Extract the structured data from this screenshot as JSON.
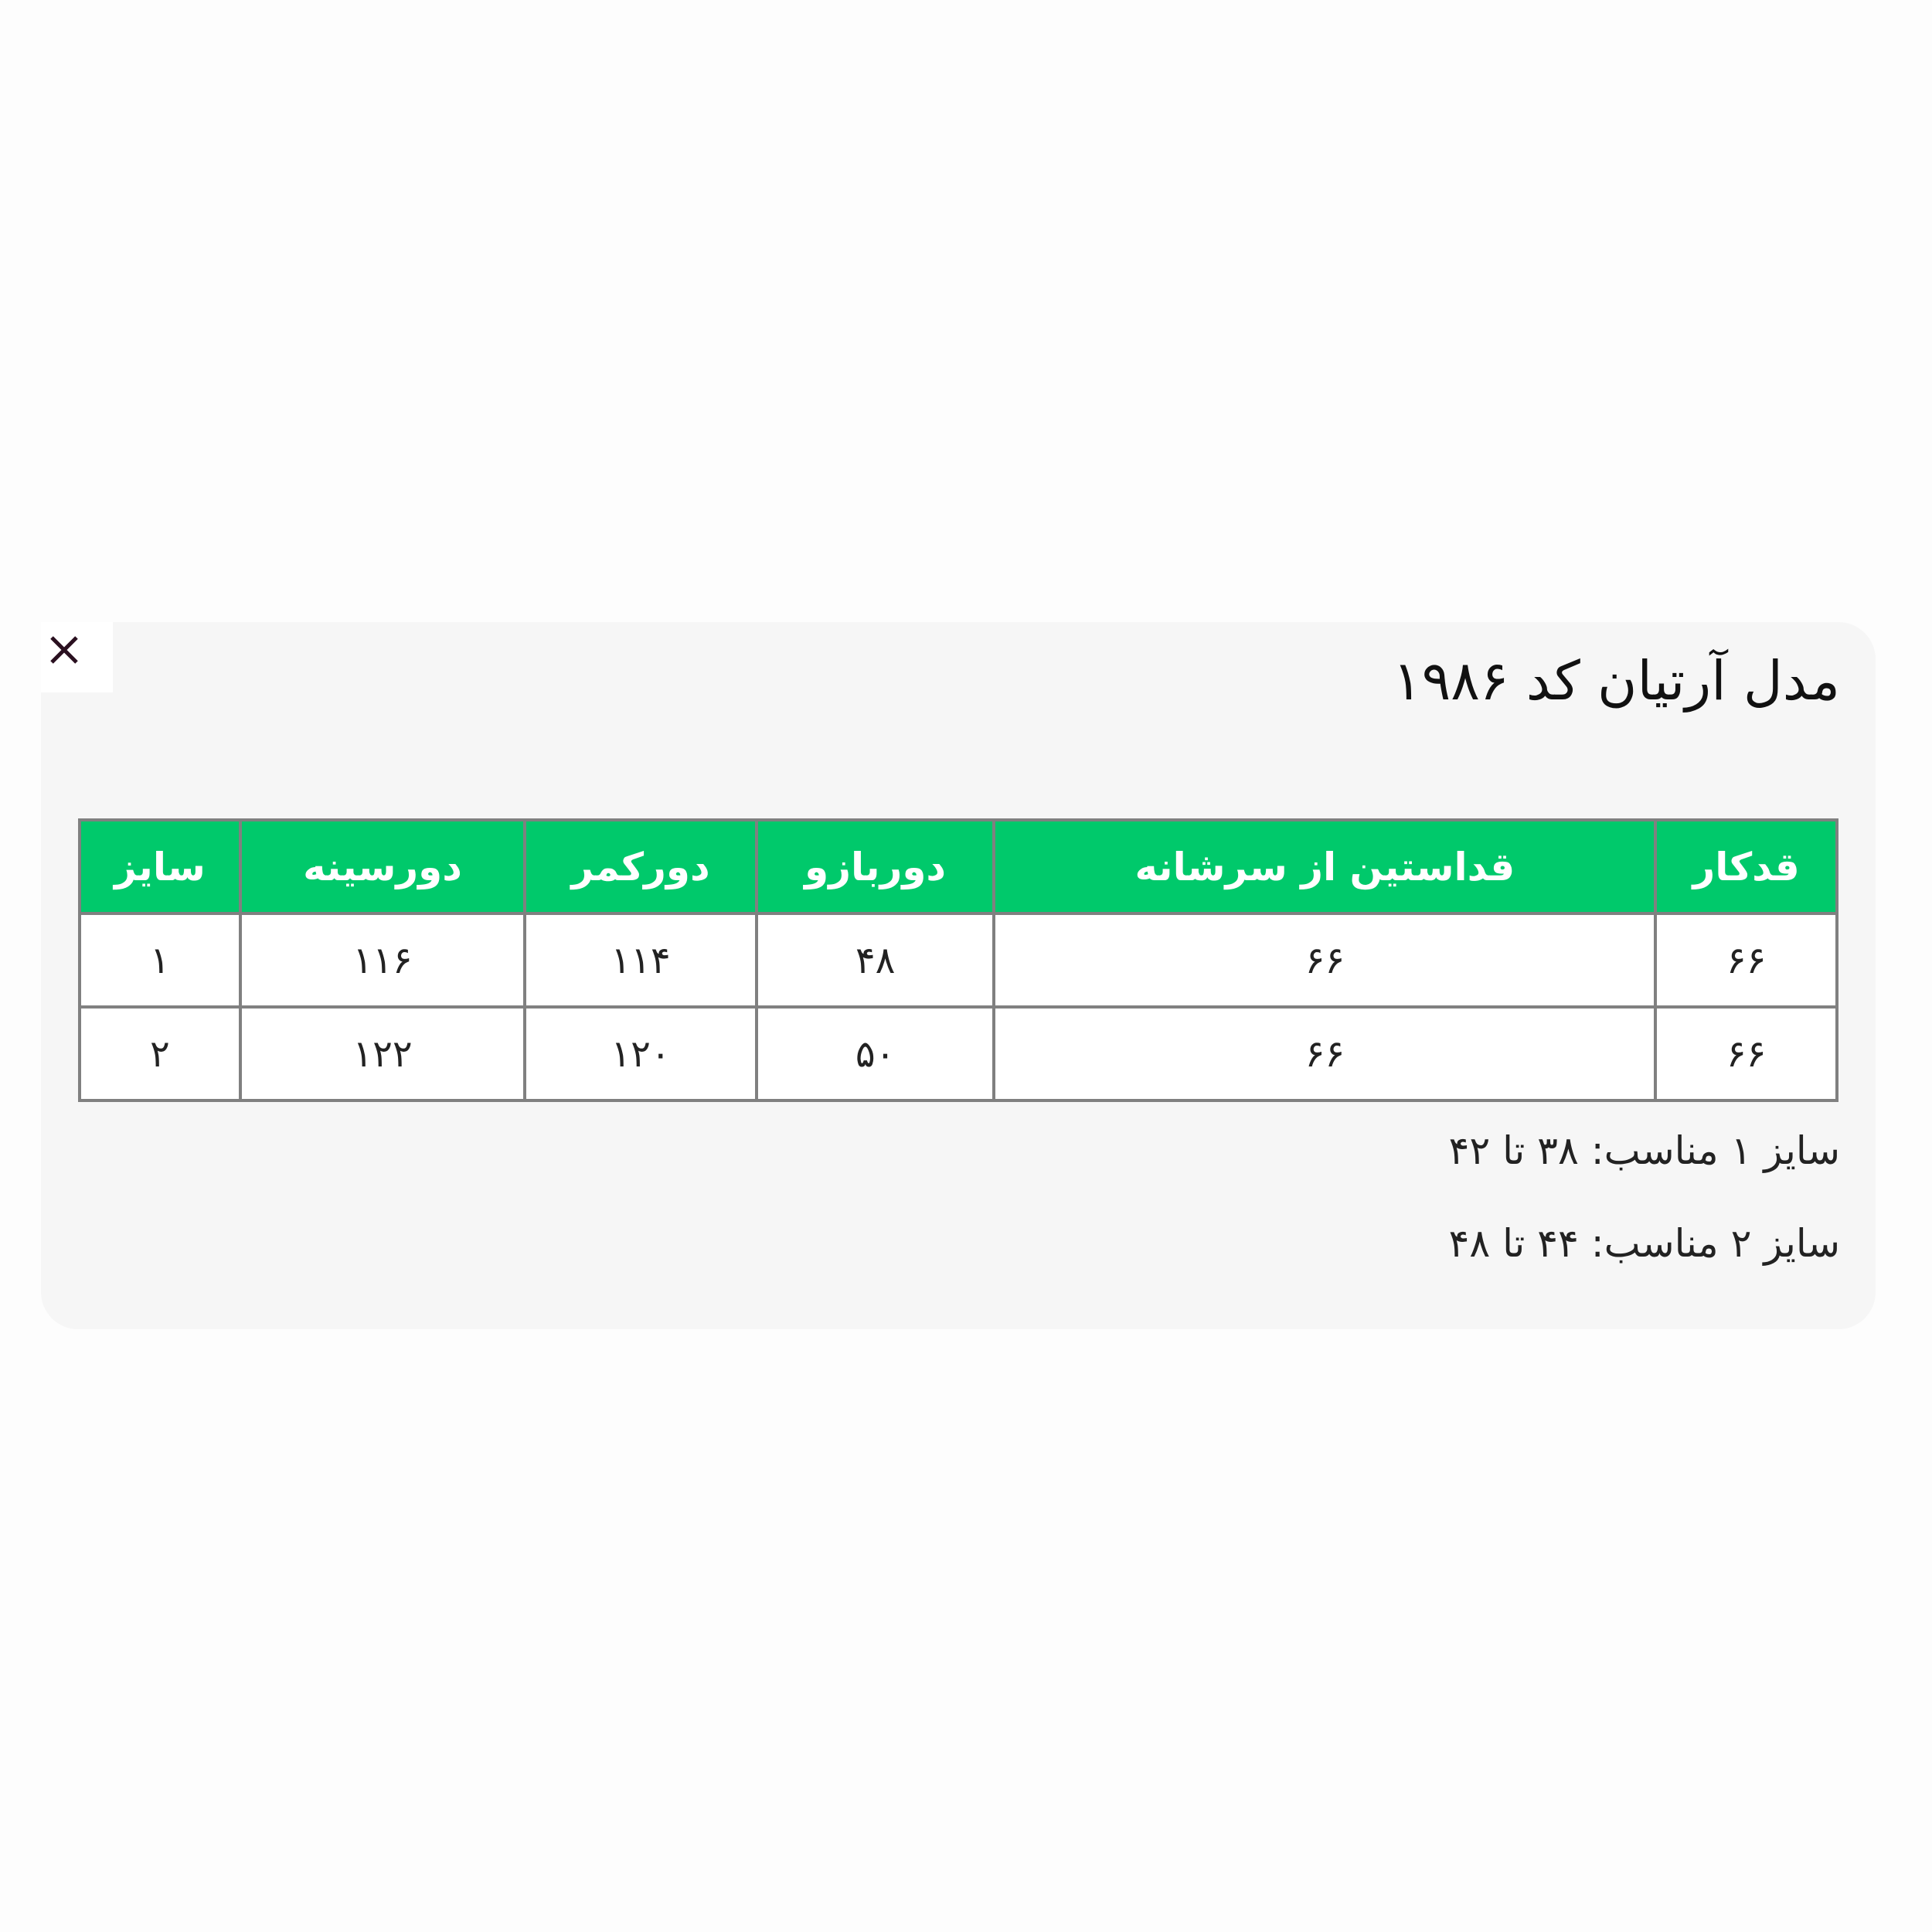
{
  "title": "مدل آرتیان کد ۱۹۸۶",
  "close_icon": "close-icon",
  "colors": {
    "header_bg": "#00c96b",
    "card_bg": "#f6f6f6",
    "border": "#808080"
  },
  "table": {
    "headers": [
      "قدکار",
      "قداستین از سرشانه",
      "دوربازو",
      "دورکمر",
      "دورسینه",
      "سایز"
    ],
    "rows": [
      [
        "۶۶",
        "۶۶",
        "۴۸",
        "۱۱۴",
        "۱۱۶",
        "۱"
      ],
      [
        "۶۶",
        "۶۶",
        "۵۰",
        "۱۲۰",
        "۱۲۲",
        "۲"
      ]
    ]
  },
  "notes": [
    "سایز ۱ مناسب: ۳۸ تا ۴۲",
    "سایز ۲ مناسب: ۴۴ تا ۴۸"
  ]
}
